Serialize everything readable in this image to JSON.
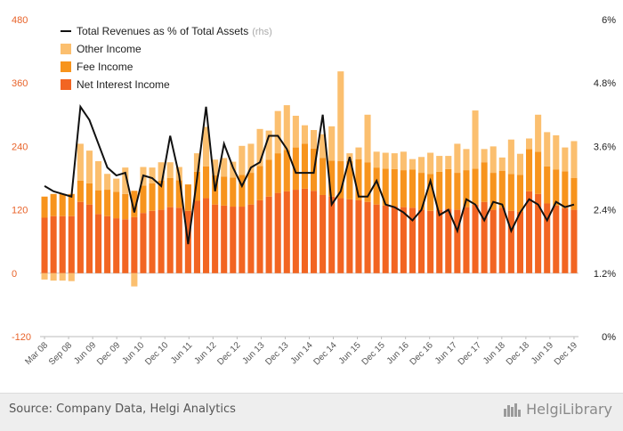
{
  "footer": {
    "source": "Source: Company Data, Helgi Analytics",
    "logo_text": "HelgiLibrary"
  },
  "colors": {
    "net_interest": "#f26522",
    "fee": "#f7941d",
    "other": "#fbbf6f",
    "line": "#111111",
    "left_axis": "#e8632a"
  },
  "icons": {
    "logo": "helgi-library-logo-icon"
  },
  "chart_data": {
    "type": "bar",
    "stacked": true,
    "title": "",
    "xlabel": "",
    "ylabel": "",
    "ylim": [
      -120,
      480
    ],
    "y_ticks": [
      "480",
      "360",
      "240",
      "120",
      "0",
      "-120"
    ],
    "y2lim": [
      0,
      6
    ],
    "y2_ticks": [
      "6%",
      "4.8%",
      "3.6%",
      "2.4%",
      "1.2%",
      "0%"
    ],
    "grid": false,
    "legend_position": "top-left",
    "x_tick_labels": [
      "Mar 08",
      "Sep 08",
      "Jun 09",
      "Dec 09",
      "Jun 10",
      "Dec 10",
      "Jun 11",
      "Jun 12",
      "Dec 12",
      "Jun 13",
      "Dec 13",
      "Jun 14",
      "Dec 14",
      "Jun 15",
      "Dec 15",
      "Jun 16",
      "Dec 16",
      "Jun 17",
      "Dec 17",
      "Jun 18",
      "Dec 18",
      "Jun 19",
      "Dec 19"
    ],
    "legend": [
      {
        "label": "Total Revenues as % of Total Assets",
        "note": "(rhs)",
        "kind": "line"
      },
      {
        "label": "Other Income",
        "kind": "bar"
      },
      {
        "label": "Fee Income",
        "kind": "bar"
      },
      {
        "label": "Net Interest Income",
        "kind": "bar"
      }
    ],
    "series": [
      {
        "name": "Net Interest Income",
        "values": [
          105,
          108,
          108,
          108,
          135,
          130,
          112,
          108,
          104,
          102,
          106,
          114,
          118,
          120,
          125,
          124,
          118,
          137,
          142,
          130,
          128,
          126,
          126,
          130,
          138,
          145,
          152,
          155,
          158,
          160,
          156,
          148,
          145,
          142,
          140,
          138,
          135,
          130,
          128,
          127,
          125,
          124,
          120,
          118,
          120,
          122,
          120,
          125,
          130,
          135,
          120,
          124,
          118,
          116,
          155,
          150,
          132,
          128,
          123,
          120
        ]
      },
      {
        "name": "Fee Income",
        "values": [
          40,
          42,
          42,
          42,
          40,
          40,
          45,
          50,
          50,
          48,
          50,
          52,
          52,
          55,
          55,
          52,
          50,
          55,
          60,
          55,
          55,
          55,
          60,
          60,
          65,
          70,
          75,
          78,
          80,
          85,
          80,
          70,
          68,
          70,
          72,
          78,
          75,
          70,
          70,
          70,
          70,
          72,
          70,
          70,
          72,
          75,
          70,
          70,
          68,
          75,
          70,
          70,
          70,
          70,
          80,
          80,
          70,
          68,
          70,
          60
        ]
      },
      {
        "name": "Other Income",
        "values": [
          -12,
          -14,
          -14,
          -15,
          70,
          62,
          55,
          30,
          25,
          50,
          -25,
          35,
          30,
          35,
          30,
          25,
          0,
          35,
          75,
          30,
          35,
          30,
          55,
          55,
          70,
          55,
          80,
          85,
          60,
          35,
          35,
          45,
          65,
          170,
          15,
          22,
          90,
          30,
          30,
          30,
          35,
          20,
          30,
          40,
          30,
          25,
          55,
          40,
          110,
          25,
          50,
          25,
          65,
          40,
          20,
          70,
          65,
          65,
          45,
          70
        ]
      },
      {
        "name": "Total Revenues as % of Total Assets",
        "axis": "rhs",
        "values": [
          2.85,
          2.75,
          2.7,
          2.65,
          4.35,
          4.1,
          3.65,
          3.2,
          3.05,
          3.1,
          2.35,
          3.05,
          3.0,
          2.85,
          3.8,
          3.05,
          1.75,
          3.0,
          4.35,
          2.75,
          3.65,
          3.2,
          2.85,
          3.2,
          3.3,
          3.8,
          3.8,
          3.55,
          3.1,
          3.1,
          3.1,
          4.2,
          2.5,
          2.75,
          3.4,
          2.65,
          2.65,
          2.95,
          2.5,
          2.45,
          2.35,
          2.2,
          2.4,
          2.95,
          2.3,
          2.4,
          2.0,
          2.6,
          2.5,
          2.2,
          2.55,
          2.5,
          2.0,
          2.35,
          2.6,
          2.5,
          2.2,
          2.55,
          2.45,
          2.5
        ]
      }
    ]
  }
}
